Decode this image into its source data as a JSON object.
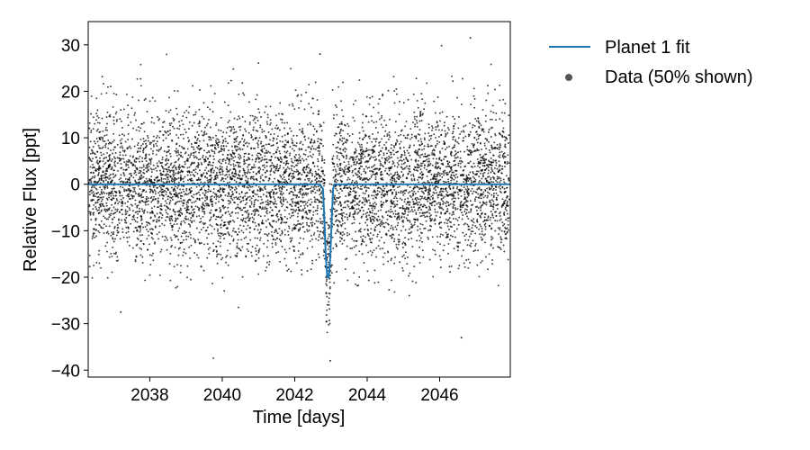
{
  "chart_data": {
    "type": "scatter",
    "title": "",
    "xlabel": "Time [days]",
    "ylabel": "Relative Flux [ppt]",
    "xlim": [
      2036.3,
      2047.95
    ],
    "ylim": [
      -41.5,
      35
    ],
    "xticks": [
      2038,
      2040,
      2042,
      2044,
      2046
    ],
    "yticks": [
      30,
      20,
      10,
      0,
      -10,
      -20,
      -30,
      -40
    ],
    "grid": false,
    "legend_position": "outside-top-right",
    "series": [
      {
        "name": "Planet 1 fit",
        "kind": "line",
        "color": "#1f77b4",
        "x": [
          2036.3,
          2042.7,
          2042.78,
          2042.82,
          2042.86,
          2042.9,
          2042.94,
          2042.98,
          2043.02,
          2043.06,
          2043.1,
          2047.95
        ],
        "y": [
          0,
          0,
          -1,
          -8,
          -16,
          -20,
          -20,
          -16,
          -8,
          -1,
          0,
          0
        ]
      },
      {
        "name": "Data (50% shown)",
        "kind": "points",
        "color": "#000000",
        "sampled": true,
        "n_points": 6400,
        "noise_sigma_ppt": 7.8,
        "transit_center": 2042.92,
        "transit_depth_ppt": 20,
        "examples": [
          {
            "x": 2042.98,
            "y": -38
          },
          {
            "x": 2046.85,
            "y": 31.5
          },
          {
            "x": 2042.7,
            "y": 28
          },
          {
            "x": 2046.6,
            "y": -33
          },
          {
            "x": 2037.2,
            "y": -27.5
          }
        ]
      }
    ]
  }
}
